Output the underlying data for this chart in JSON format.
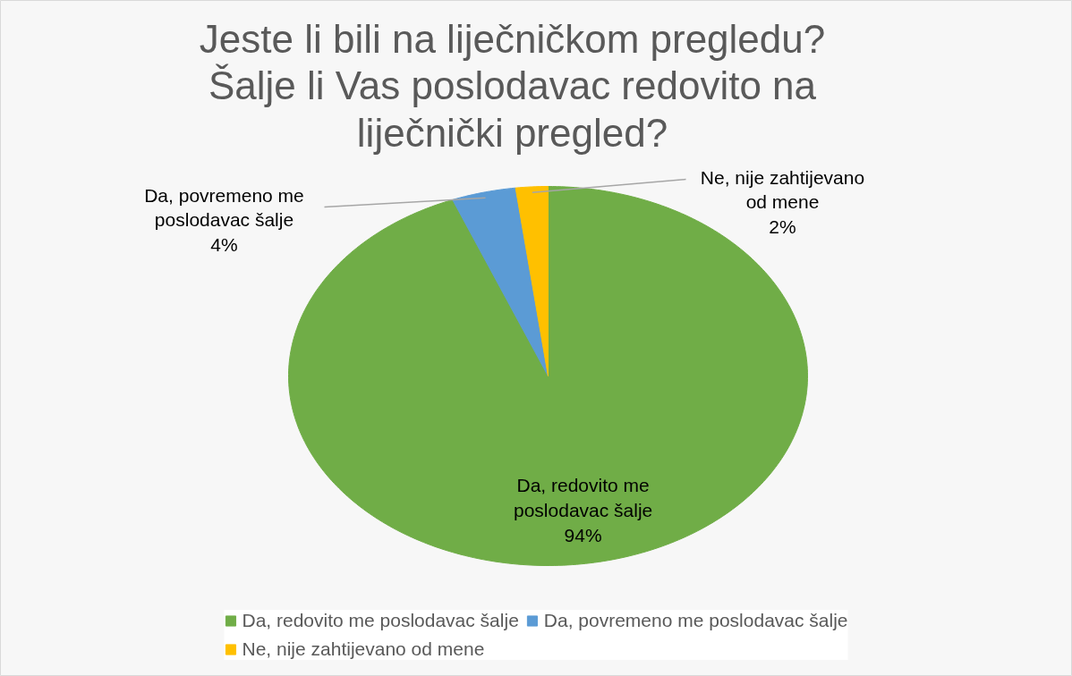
{
  "chart_data": {
    "type": "pie",
    "title": "Jeste li bili na liječničkom pregledu? Šalje li Vas poslodavac redovito na liječnički pregled?",
    "categories": [
      "Da, redovito me poslodavac šalje",
      "Da, povremeno me poslodavac šalje",
      "Ne, nije zahtijevano od mene"
    ],
    "values": [
      94,
      4,
      2
    ],
    "colors": [
      "#70ad47",
      "#5b9bd5",
      "#ffc000"
    ],
    "value_labels": [
      "94%",
      "4%",
      "2%"
    ],
    "legend": "bottom"
  }
}
